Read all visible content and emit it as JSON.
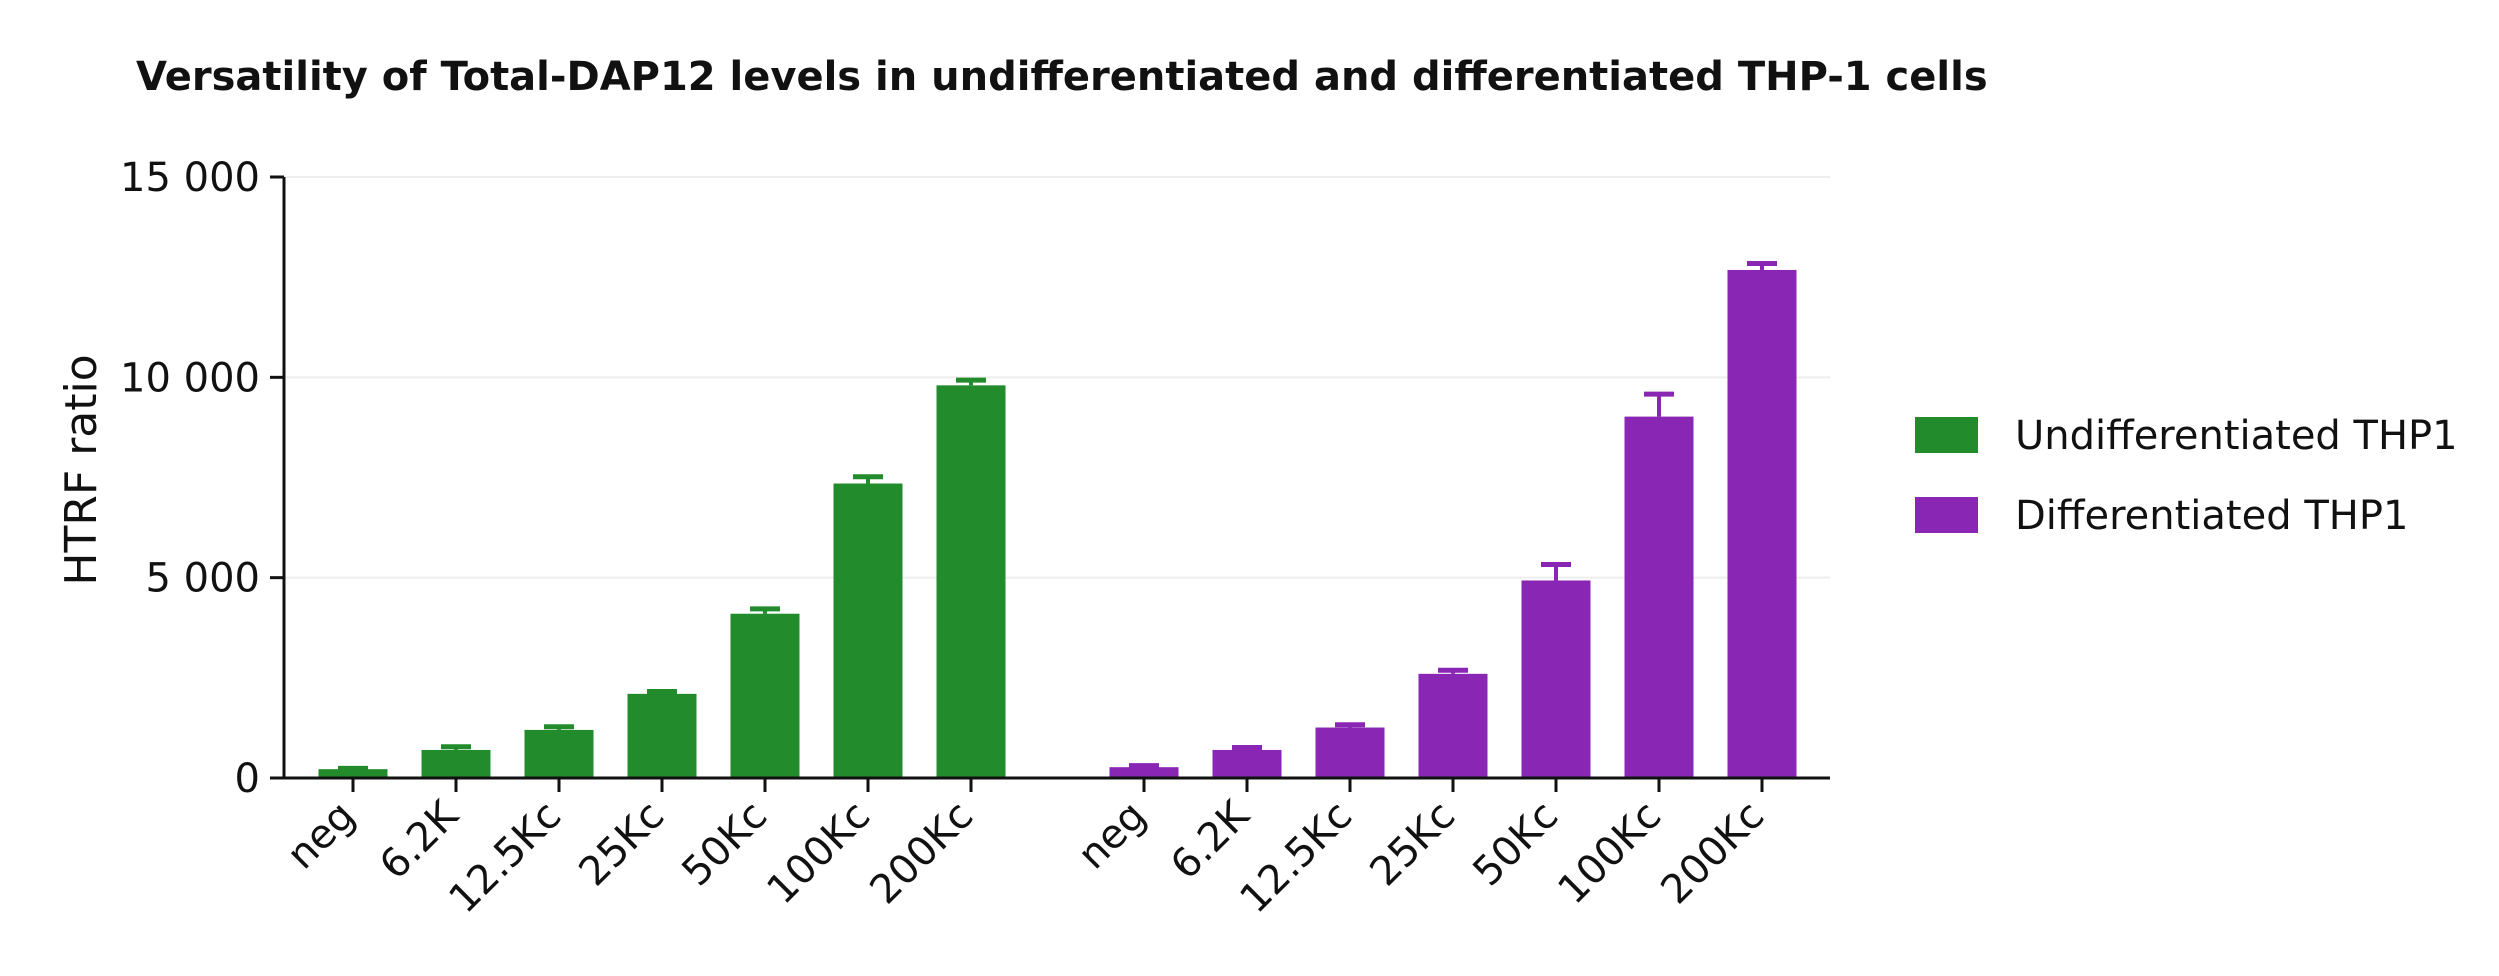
{
  "chart_data": {
    "type": "bar",
    "title": "Versatility of Total-DAP12 levels in undifferentiated and differentiated THP-1 cells",
    "xlabel": "",
    "ylabel": "HTRF ratio",
    "ylim": [
      0,
      15000
    ],
    "yticks": [
      0,
      5000,
      10000,
      15000
    ],
    "ytick_labels": [
      "0",
      "5 000",
      "10 000",
      "15 000"
    ],
    "grid": true,
    "legend_position": "right",
    "categories": [
      "neg",
      "6.2K",
      "12.5Kc",
      "25Kc",
      "50Kc",
      "100Kc",
      "200Kc"
    ],
    "series": [
      {
        "name": "Undifferentiated THP1",
        "color": "#228B2B",
        "values": [
          220,
          700,
          1200,
          2100,
          4100,
          7350,
          9800
        ],
        "errors": [
          20,
          80,
          80,
          60,
          120,
          170,
          130
        ]
      },
      {
        "name": "Differentiated THP1",
        "color": "#8A26B4",
        "values": [
          270,
          700,
          1260,
          2600,
          4930,
          9020,
          12680
        ],
        "errors": [
          40,
          60,
          70,
          90,
          400,
          560,
          160
        ]
      }
    ]
  }
}
